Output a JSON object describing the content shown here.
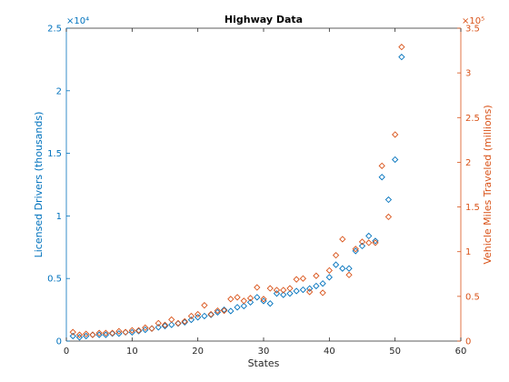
{
  "chart_data": {
    "type": "scatter",
    "title": "Highway Data",
    "xlabel": "States",
    "x_ticks": [
      0,
      10,
      20,
      30,
      40,
      50,
      60
    ],
    "xlim": [
      0,
      60
    ],
    "left_axis": {
      "label": "Licensed Drivers (thousands)",
      "color": "#0072BD",
      "exponent_label": "×10⁴",
      "ylim": [
        0,
        25000
      ],
      "ticks": [
        0,
        5000,
        10000,
        15000,
        20000,
        25000
      ],
      "tick_labels": [
        "0",
        "0.5",
        "1",
        "1.5",
        "2",
        "2.5"
      ]
    },
    "right_axis": {
      "label": "Vehicle Miles Traveled (millions)",
      "color": "#D95319",
      "exponent_label": "×10⁵",
      "ylim": [
        0,
        350000
      ],
      "ticks": [
        0,
        50000,
        100000,
        150000,
        200000,
        250000,
        300000,
        350000
      ],
      "tick_labels": [
        "0",
        "0.5",
        "1",
        "1.5",
        "2",
        "2.5",
        "3",
        "3.5"
      ]
    },
    "grid": false,
    "series": [
      {
        "axis": "left",
        "color": "#0072BD",
        "marker": "diamond",
        "x": [
          1,
          2,
          3,
          4,
          5,
          6,
          7,
          8,
          9,
          10,
          11,
          12,
          13,
          14,
          15,
          16,
          17,
          18,
          19,
          20,
          21,
          22,
          23,
          24,
          25,
          26,
          27,
          28,
          29,
          30,
          31,
          32,
          33,
          34,
          35,
          36,
          37,
          38,
          39,
          40,
          41,
          42,
          43,
          44,
          45,
          46,
          47,
          48,
          49,
          50,
          51
        ],
        "values": [
          400,
          300,
          400,
          500,
          500,
          500,
          600,
          600,
          700,
          700,
          800,
          900,
          1000,
          1100,
          1200,
          1300,
          1400,
          1500,
          1700,
          1900,
          2000,
          2100,
          2300,
          2500,
          2400,
          2700,
          2800,
          3100,
          3500,
          3200,
          3000,
          3800,
          3700,
          3800,
          4000,
          4100,
          4200,
          4400,
          4600,
          5100,
          6100,
          5800,
          5800,
          7200,
          7600,
          8400,
          8000,
          13100,
          11300,
          14500,
          22700
        ]
      },
      {
        "axis": "right",
        "color": "#D95319",
        "marker": "diamond",
        "x": [
          1,
          2,
          3,
          4,
          5,
          6,
          7,
          8,
          9,
          10,
          11,
          12,
          13,
          14,
          15,
          16,
          17,
          18,
          19,
          20,
          21,
          22,
          23,
          24,
          25,
          26,
          27,
          28,
          29,
          30,
          31,
          32,
          33,
          34,
          35,
          36,
          37,
          38,
          39,
          40,
          41,
          42,
          43,
          44,
          45,
          46,
          47,
          48,
          49,
          50,
          51
        ],
        "values": [
          10000,
          7000,
          8000,
          7000,
          9000,
          9000,
          9000,
          11000,
          10000,
          12000,
          12000,
          15000,
          14000,
          20000,
          18000,
          24000,
          20000,
          22000,
          28000,
          30000,
          40000,
          30000,
          34000,
          34000,
          47000,
          49000,
          45000,
          48000,
          60000,
          47000,
          59000,
          57000,
          57000,
          59000,
          69000,
          70000,
          55000,
          73000,
          54000,
          79000,
          96000,
          114000,
          74000,
          103000,
          111000,
          110000,
          110000,
          196000,
          139000,
          231000,
          329000
        ]
      }
    ]
  }
}
